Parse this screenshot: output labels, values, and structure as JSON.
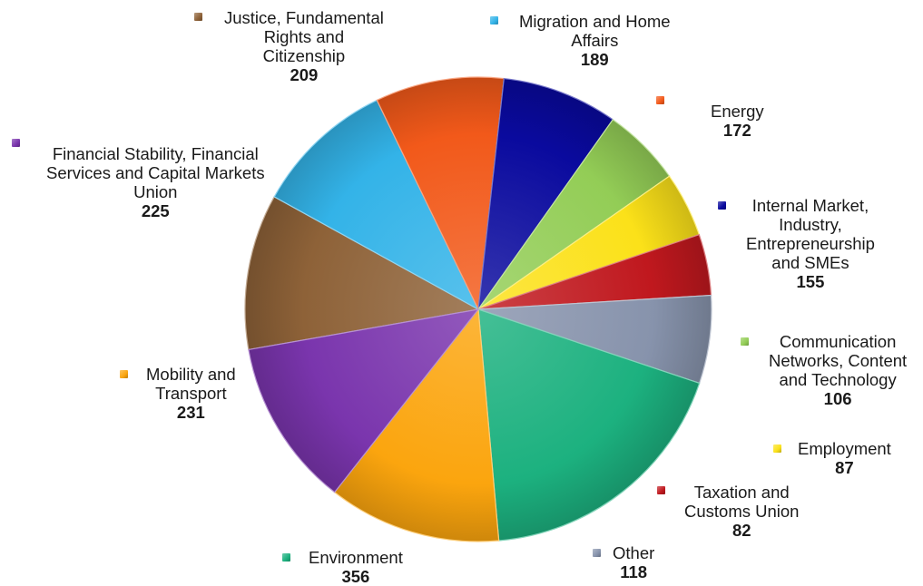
{
  "chart_data": {
    "type": "pie",
    "title": "",
    "unit": "",
    "slices": [
      {
        "label": "Justice, Fundamental Rights and Citizenship",
        "lines": [
          "Justice, Fundamental",
          "Rights and",
          "Citizenship"
        ],
        "value": 209,
        "color": "#8e6238"
      },
      {
        "label": "Migration and Home Affairs",
        "lines": [
          "Migration and Home",
          "Affairs"
        ],
        "value": 189,
        "color": "#33b3e8"
      },
      {
        "label": "Energy",
        "lines": [
          "Energy"
        ],
        "value": 172,
        "color": "#f2591a"
      },
      {
        "label": "Internal Market, Industry, Entrepreneurship and SMEs",
        "lines": [
          "Internal Market,",
          "Industry,",
          "Entrepreneurship",
          "and SMEs"
        ],
        "value": 155,
        "color": "#0a0a9e"
      },
      {
        "label": "Communication Networks, Content and Technology",
        "lines": [
          "Communication",
          "Networks, Content",
          "and Technology"
        ],
        "value": 106,
        "color": "#93cd56"
      },
      {
        "label": "Employment",
        "lines": [
          "Employment"
        ],
        "value": 87,
        "color": "#fbe119"
      },
      {
        "label": "Taxation and Customs Union",
        "lines": [
          "Taxation and",
          "Customs Union"
        ],
        "value": 82,
        "color": "#c0181e"
      },
      {
        "label": "Other",
        "lines": [
          "Other"
        ],
        "value": 118,
        "color": "#8793ac"
      },
      {
        "label": "Environment",
        "lines": [
          "Environment"
        ],
        "value": 356,
        "color": "#1cb17f"
      },
      {
        "label": "Mobility and Transport",
        "lines": [
          "Mobility and",
          "Transport"
        ],
        "value": 231,
        "color": "#fba50e"
      },
      {
        "label": "Financial Stability, Financial Services and Capital Markets Union",
        "lines": [
          "Financial Stability, Financial",
          "Services and Capital Markets",
          "Union"
        ],
        "value": 225,
        "color": "#7a35ad"
      }
    ],
    "legend": "none",
    "data_labels": "outside, name and value"
  }
}
